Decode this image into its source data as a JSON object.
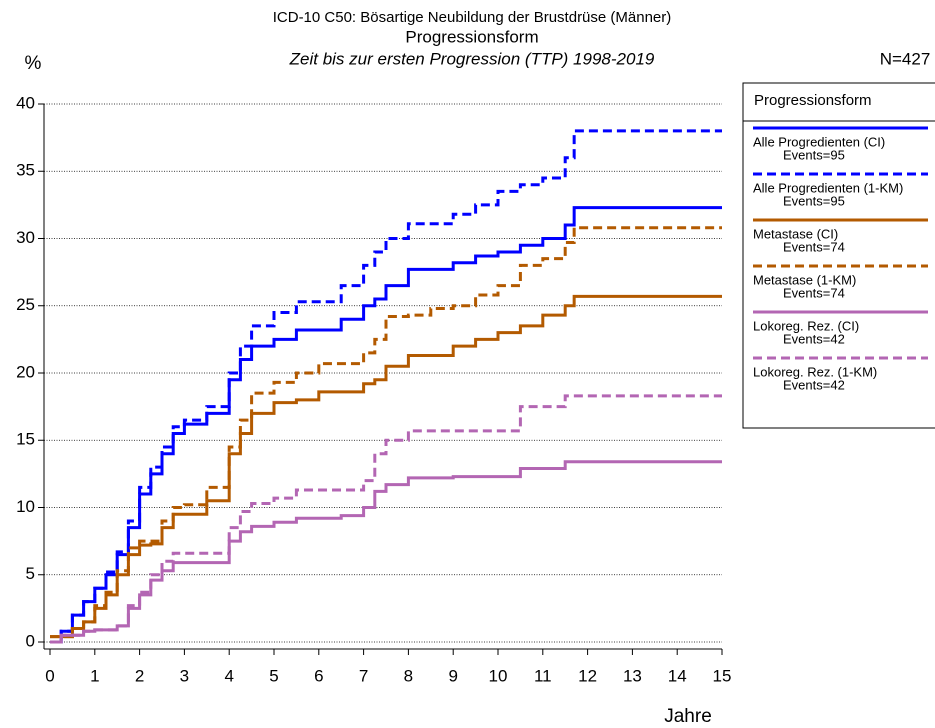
{
  "chart_data": {
    "type": "step",
    "title": "ICD-10 C50: Bösartige Neubildung der Brustdrüse (Männer)",
    "subtitle": "Progressionsform",
    "subtitle2": "Zeit bis zur ersten Progression (TTP) 1998-2019",
    "y_label": "%",
    "x_label": "Jahre",
    "n_label": "N=427",
    "legend_title": "Progressionsform",
    "x": [
      0,
      0.25,
      0.5,
      0.75,
      1,
      1.25,
      1.5,
      1.75,
      2,
      2.25,
      2.5,
      2.75,
      3,
      3.5,
      4,
      4.25,
      4.5,
      5,
      5.5,
      6,
      6.5,
      7,
      7.25,
      7.5,
      8,
      8.5,
      9,
      9.5,
      10,
      10.5,
      11,
      11.5,
      11.7,
      15
    ],
    "series": [
      {
        "name": "Alle Progredienten (CI)",
        "events": "Events=95",
        "color": "#0000ff",
        "dashed": false,
        "values": [
          0,
          0.8,
          2,
          3,
          4,
          5,
          6.5,
          8.5,
          11,
          12.5,
          14,
          15.5,
          16.2,
          17,
          19.5,
          21,
          22,
          22.5,
          23.2,
          23.2,
          24,
          25,
          25.5,
          26.5,
          27.7,
          27.7,
          28.2,
          28.7,
          29,
          29.5,
          30,
          31,
          32.3,
          32.3
        ]
      },
      {
        "name": "Alle Progredienten (1-KM)",
        "events": "Events=95",
        "color": "#0000ff",
        "dashed": true,
        "values": [
          0,
          0.8,
          2,
          3,
          4,
          5.2,
          6.7,
          9,
          11.5,
          13,
          14.5,
          16,
          16.5,
          17.5,
          20,
          22,
          23.5,
          24.5,
          25.3,
          25.3,
          26.5,
          28,
          29,
          30,
          31.1,
          31.1,
          31.8,
          32.5,
          33.5,
          34,
          34.5,
          36,
          38,
          38
        ]
      },
      {
        "name": "Metastase (CI)",
        "events": "Events=74",
        "color": "#b35a00",
        "dashed": false,
        "values": [
          0.4,
          0.4,
          1,
          1.5,
          2.5,
          3.5,
          5,
          6.5,
          7.2,
          7.3,
          8.5,
          9.5,
          9.5,
          10.5,
          14,
          15.5,
          17,
          17.8,
          18,
          18.6,
          18.6,
          19.2,
          19.5,
          20.5,
          21.3,
          21.3,
          22,
          22.5,
          23,
          23.5,
          24.3,
          25,
          25.7,
          25.7
        ]
      },
      {
        "name": "Metastase (1-KM)",
        "events": "Events=74",
        "color": "#b35a00",
        "dashed": true,
        "values": [
          0.4,
          0.4,
          1,
          1.5,
          2.7,
          3.7,
          5.3,
          7,
          7.5,
          7.5,
          9,
          10,
          10.2,
          11.5,
          14.5,
          16.5,
          18.5,
          19.3,
          20,
          20.7,
          20.7,
          21.5,
          22.5,
          24.2,
          24.3,
          24.8,
          25,
          25.8,
          26.5,
          28,
          28.5,
          29.7,
          30.8,
          30.8
        ]
      },
      {
        "name": "Lokoreg. Rez. (CI)",
        "events": "Events=42",
        "color": "#b366b3",
        "dashed": false,
        "values": [
          0,
          0.5,
          0.5,
          0.8,
          0.9,
          0.9,
          1.2,
          2.5,
          3.5,
          4.6,
          5.3,
          5.9,
          5.9,
          5.9,
          7.5,
          8.2,
          8.6,
          8.9,
          9.2,
          9.2,
          9.4,
          10,
          11.2,
          11.7,
          12.2,
          12.2,
          12.3,
          12.3,
          12.3,
          12.9,
          12.9,
          13.4,
          13.4,
          13.4
        ]
      },
      {
        "name": "Lokoreg. Rez. (1-KM)",
        "events": "Events=42",
        "color": "#b366b3",
        "dashed": true,
        "values": [
          0,
          0.5,
          0.5,
          0.8,
          0.9,
          0.9,
          1.2,
          2.7,
          3.7,
          5,
          6,
          6.6,
          6.6,
          6.6,
          8.5,
          9.7,
          10.3,
          10.7,
          11.3,
          11.3,
          11.3,
          12,
          14,
          15,
          15.7,
          15.7,
          15.7,
          15.7,
          15.7,
          17.5,
          17.5,
          18.3,
          18.3,
          18.3
        ]
      }
    ],
    "xlim": [
      0,
      15
    ],
    "xticks": [
      0,
      1,
      2,
      3,
      4,
      5,
      6,
      7,
      8,
      9,
      10,
      11,
      12,
      13,
      14,
      15
    ],
    "ylim": [
      0,
      40
    ],
    "yticks": [
      0,
      5,
      10,
      15,
      20,
      25,
      30,
      35,
      40
    ],
    "grid": true
  }
}
